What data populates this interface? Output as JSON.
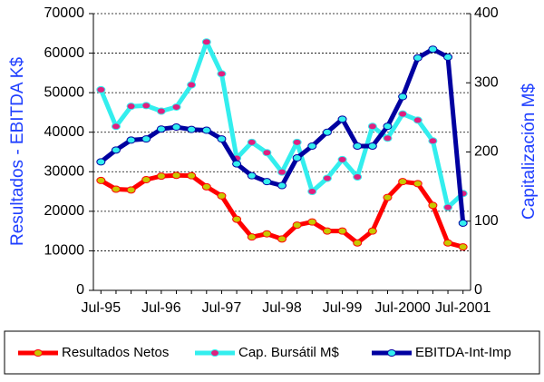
{
  "chart_data": {
    "type": "line",
    "y_label": "Resultados - EBITDA K$",
    "y2_label": "Capitalización M$",
    "categories": [
      "Jul-95",
      null,
      null,
      null,
      "Jul-96",
      null,
      null,
      null,
      "Jul-97",
      null,
      null,
      null,
      "Jul-98",
      null,
      null,
      null,
      "Jul-99",
      null,
      null,
      null,
      "Jul-2000",
      null,
      null,
      null,
      "Jul-2001"
    ],
    "series": [
      {
        "name": "Resultados Netos",
        "color": "#ff0000",
        "marker_color": "#c8c800",
        "values": [
          27800,
          25600,
          25400,
          28000,
          28900,
          29100,
          29000,
          26200,
          23900,
          18000,
          13500,
          14300,
          13000,
          16500,
          17300,
          15000,
          15000,
          12000,
          15000,
          23500,
          27500,
          27000,
          21500,
          12000,
          11000
        ]
      },
      {
        "name": "Cap. Bursátil M$",
        "color": "#33eeee",
        "marker_color": "#e0207f",
        "axis": "y2",
        "values": [
          290,
          237,
          266,
          267,
          259,
          265,
          297,
          359,
          313,
          191,
          214,
          199,
          171,
          214,
          143,
          162,
          189,
          164,
          237,
          220,
          255,
          246,
          216,
          120,
          140
        ]
      },
      {
        "name": "EBITDA-Int-Imp",
        "color": "#0000a0",
        "marker_color": "#33eeee",
        "values": [
          32500,
          35500,
          38000,
          38300,
          40800,
          41300,
          40700,
          40500,
          38300,
          32000,
          29000,
          27500,
          26500,
          33500,
          36500,
          40000,
          43300,
          36500,
          36500,
          41500,
          49000,
          58800,
          61000,
          59000,
          17000
        ]
      }
    ],
    "ylim": [
      0,
      70000
    ],
    "yticks": [
      0,
      10000,
      20000,
      30000,
      40000,
      50000,
      60000,
      70000
    ],
    "y2lim": [
      0,
      400
    ],
    "y2ticks": [
      0,
      100,
      200,
      300,
      400
    ],
    "grid": true,
    "legend": "bottom"
  }
}
